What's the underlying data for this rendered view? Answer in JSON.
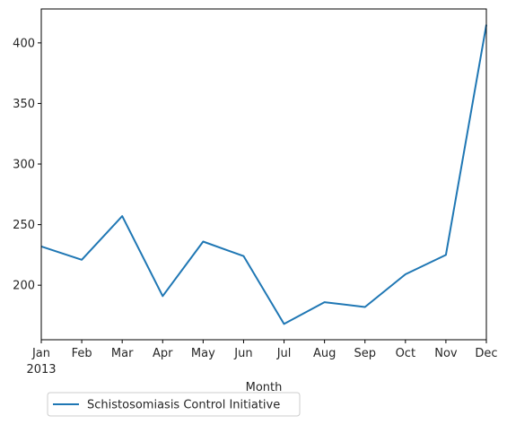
{
  "chart_data": {
    "type": "line",
    "title": "",
    "xlabel": "Month",
    "ylabel": "",
    "x": [
      "Jan",
      "Feb",
      "Mar",
      "Apr",
      "May",
      "Jun",
      "Jul",
      "Aug",
      "Sep",
      "Oct",
      "Nov",
      "Dec"
    ],
    "x_year_label": "2013",
    "series": [
      {
        "name": "Schistosomiasis Control Initiative",
        "values": [
          232,
          221,
          257,
          191,
          236,
          224,
          168,
          186,
          182,
          209,
          225,
          415
        ],
        "color": "#1f77b4"
      }
    ],
    "ylim": [
      155,
      428
    ],
    "yticks": [
      200,
      250,
      300,
      350,
      400
    ],
    "grid": false,
    "legend": "below-left"
  }
}
